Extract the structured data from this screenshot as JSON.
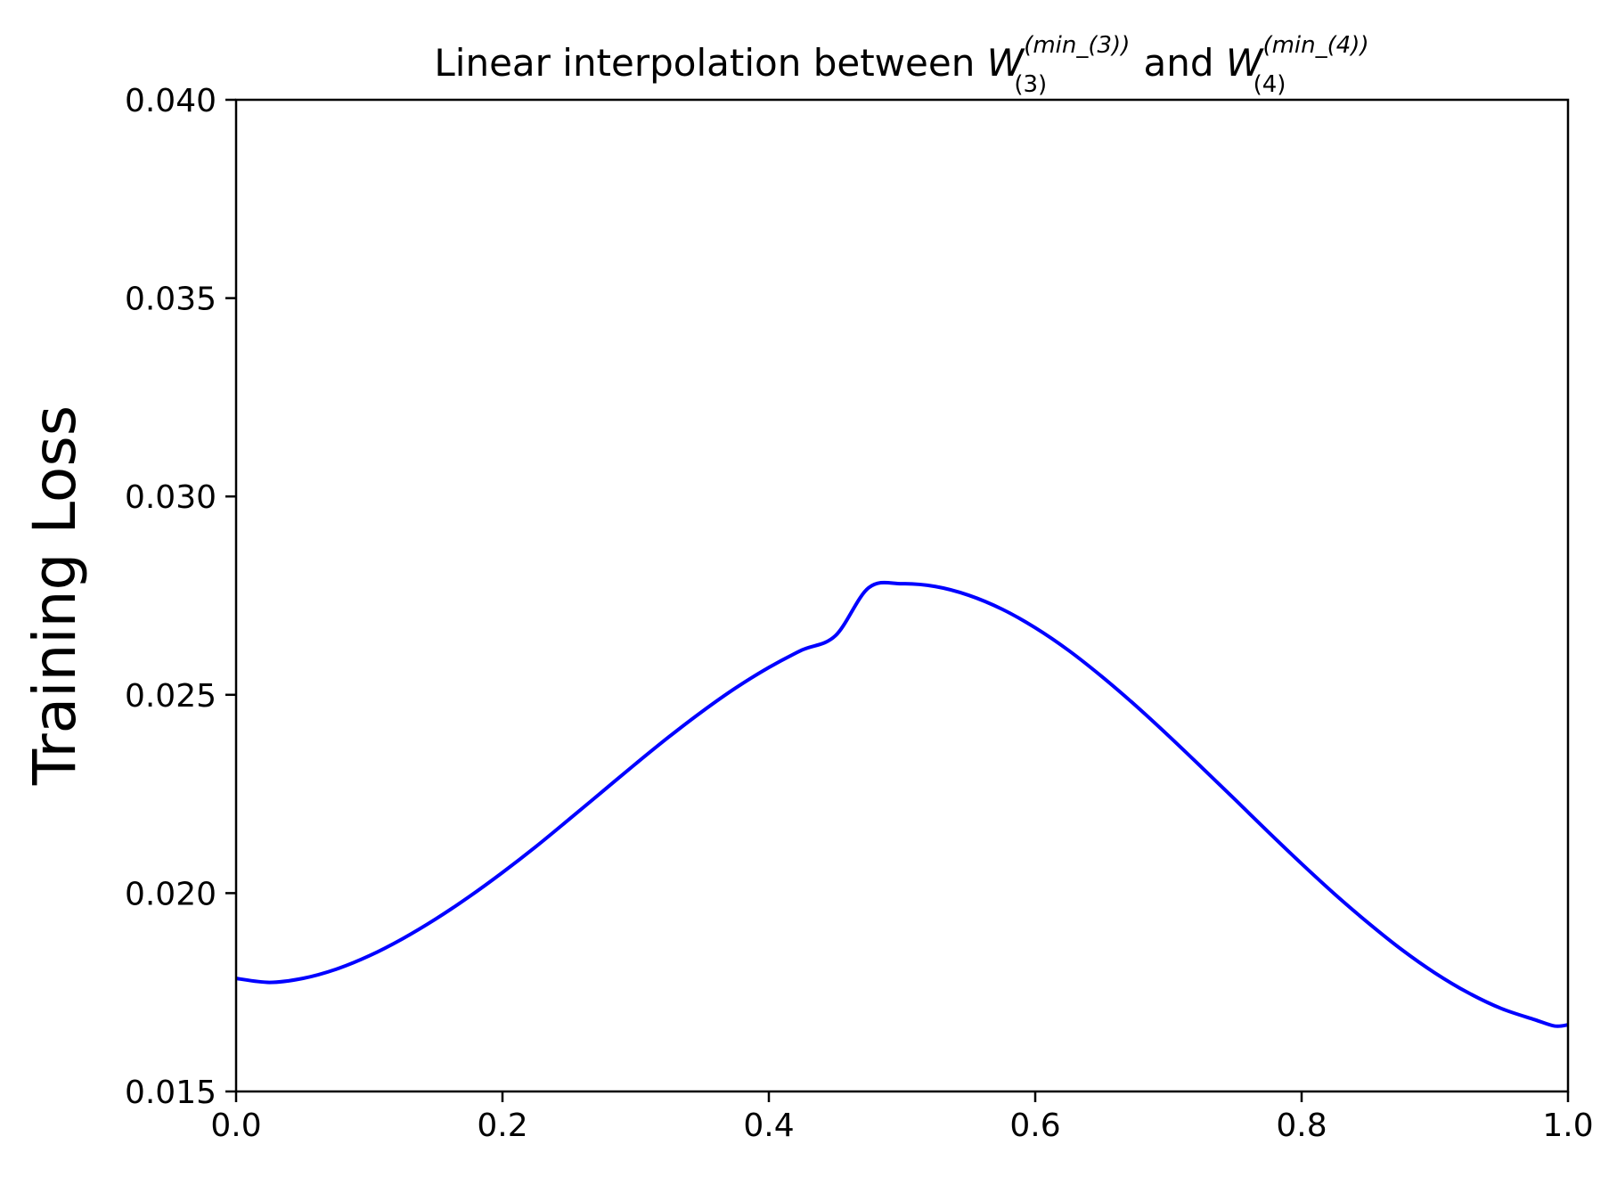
{
  "chart_data": {
    "type": "line",
    "title": {
      "prefix": "Linear interpolation between ",
      "w1": {
        "symbol": "W",
        "sup": "(min_(3))",
        "sub": "(3)"
      },
      "connector": " and ",
      "w2": {
        "symbol": "W",
        "sup": "(min_(4))",
        "sub": "(4)"
      }
    },
    "xlabel": "",
    "ylabel": "Training Loss",
    "xlim": [
      0.0,
      1.0
    ],
    "ylim": [
      0.015,
      0.04
    ],
    "xticks": [
      "0.0",
      "0.2",
      "0.4",
      "0.6",
      "0.8",
      "1.0"
    ],
    "yticks": [
      "0.015",
      "0.020",
      "0.025",
      "0.030",
      "0.035",
      "0.040"
    ],
    "grid": false,
    "series": [
      {
        "color": "#0000ff",
        "x": [
          0.0,
          0.025,
          0.05,
          0.075,
          0.1,
          0.125,
          0.15,
          0.175,
          0.2,
          0.225,
          0.25,
          0.275,
          0.3,
          0.325,
          0.35,
          0.375,
          0.4,
          0.425,
          0.45,
          0.475,
          0.5,
          0.525,
          0.55,
          0.575,
          0.6,
          0.625,
          0.65,
          0.675,
          0.7,
          0.725,
          0.75,
          0.775,
          0.8,
          0.825,
          0.85,
          0.875,
          0.9,
          0.925,
          0.95,
          0.975,
          0.99,
          1.0
        ],
        "y": [
          0.01785,
          0.01775,
          0.01785,
          0.01808,
          0.01842,
          0.01885,
          0.01935,
          0.01991,
          0.02052,
          0.02117,
          0.02186,
          0.02256,
          0.02326,
          0.02394,
          0.02458,
          0.02517,
          0.02569,
          0.02613,
          0.02649,
          0.0277,
          0.0278,
          0.02773,
          0.02751,
          0.02716,
          0.02669,
          0.02612,
          0.02546,
          0.02474,
          0.02397,
          0.02317,
          0.02236,
          0.02154,
          0.02074,
          0.01997,
          0.01925,
          0.01858,
          0.01799,
          0.01749,
          0.01709,
          0.01681,
          0.01665,
          0.01668
        ]
      }
    ]
  }
}
